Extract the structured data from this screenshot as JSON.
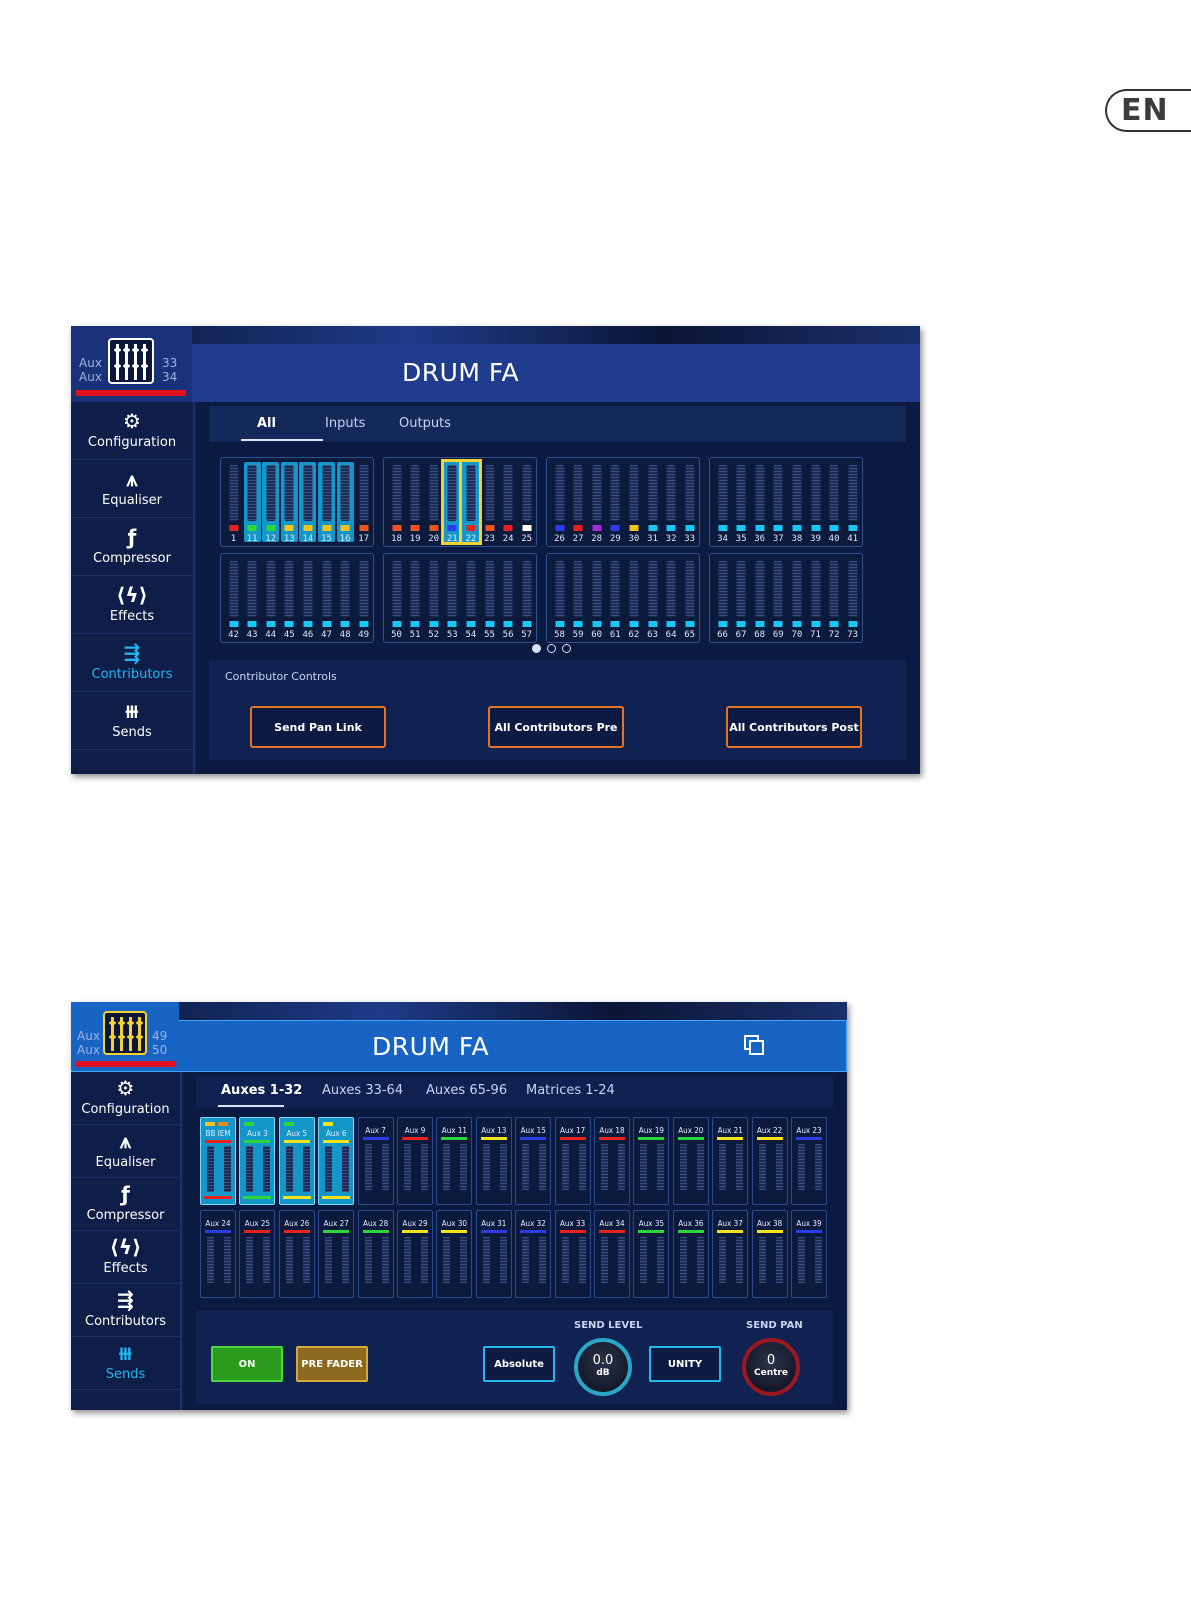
{
  "language_badge": "EN",
  "panel1": {
    "title": "DRUM FA",
    "aux_top": "Aux",
    "aux_bottom": "Aux",
    "aux_num_top": "33",
    "aux_num_bottom": "34",
    "sidebar": [
      {
        "label": "Configuration",
        "icon": "configuration-icon",
        "glyph": "⚙"
      },
      {
        "label": "Equaliser",
        "icon": "equaliser-icon",
        "glyph": "⩚"
      },
      {
        "label": "Compressor",
        "icon": "compressor-icon",
        "glyph": "ƒ"
      },
      {
        "label": "Effects",
        "icon": "effects-icon",
        "glyph": "⟨ϟ⟩"
      },
      {
        "label": "Contributors",
        "icon": "contributors-icon",
        "glyph": "⇶"
      },
      {
        "label": "Sends",
        "icon": "sends-icon",
        "glyph": "⧻"
      }
    ],
    "active_sidebar": "Contributors",
    "tabs": [
      "All",
      "Inputs",
      "Outputs"
    ],
    "active_tab": "All",
    "groups": [
      {
        "nums": [
          "1",
          "11",
          "12",
          "13",
          "14",
          "15",
          "16",
          "17"
        ],
        "dots": [
          "#e8231d",
          "#2cd73a",
          "#2cd73a",
          "#f5c21b",
          "#f5c21b",
          "#f5c21b",
          "#f5c21b",
          "#ec5420"
        ],
        "sel": [
          1,
          2,
          3,
          4,
          5,
          6
        ]
      },
      {
        "nums": [
          "18",
          "19",
          "20",
          "21",
          "22",
          "23",
          "24",
          "25"
        ],
        "dots": [
          "#ec5420",
          "#ec5420",
          "#ec5420",
          "#2b3ce8",
          "#e8231d",
          "#ec5420",
          "#e8231d",
          "#ffffff"
        ],
        "selY": [
          3,
          4
        ]
      },
      {
        "nums": [
          "26",
          "27",
          "28",
          "29",
          "30",
          "31",
          "32",
          "33"
        ],
        "dots": [
          "#2b3ce8",
          "#e8231d",
          "#a12fd8",
          "#2b3ce8",
          "#f5c21b",
          "#19c7f2",
          "#19c7f2",
          "#19c7f2"
        ]
      },
      {
        "nums": [
          "34",
          "35",
          "36",
          "37",
          "38",
          "39",
          "40",
          "41"
        ],
        "dots": [
          "#19c7f2",
          "#19c7f2",
          "#19c7f2",
          "#19c7f2",
          "#19c7f2",
          "#19c7f2",
          "#19c7f2",
          "#19c7f2"
        ]
      },
      {
        "nums": [
          "42",
          "43",
          "44",
          "45",
          "46",
          "47",
          "48",
          "49"
        ],
        "dots": [
          "#19c7f2",
          "#19c7f2",
          "#19c7f2",
          "#19c7f2",
          "#19c7f2",
          "#19c7f2",
          "#19c7f2",
          "#19c7f2"
        ]
      },
      {
        "nums": [
          "50",
          "51",
          "52",
          "53",
          "54",
          "55",
          "56",
          "57"
        ],
        "dots": [
          "#19c7f2",
          "#19c7f2",
          "#19c7f2",
          "#19c7f2",
          "#19c7f2",
          "#19c7f2",
          "#19c7f2",
          "#19c7f2"
        ]
      },
      {
        "nums": [
          "58",
          "59",
          "60",
          "61",
          "62",
          "63",
          "64",
          "65"
        ],
        "dots": [
          "#19c7f2",
          "#19c7f2",
          "#19c7f2",
          "#19c7f2",
          "#19c7f2",
          "#19c7f2",
          "#19c7f2",
          "#19c7f2"
        ]
      },
      {
        "nums": [
          "66",
          "67",
          "68",
          "69",
          "70",
          "71",
          "72",
          "73"
        ],
        "dots": [
          "#19c7f2",
          "#19c7f2",
          "#19c7f2",
          "#19c7f2",
          "#19c7f2",
          "#19c7f2",
          "#19c7f2",
          "#19c7f2"
        ]
      }
    ],
    "pager": {
      "pages": 3,
      "current": 1
    },
    "controls_label": "Contributor Controls",
    "buttons": [
      "Send Pan Link",
      "All Contributors Pre",
      "All Contributors Post"
    ]
  },
  "panel2": {
    "title": "DRUM FA",
    "aux_top": "Aux",
    "aux_bottom": "Aux",
    "aux_num_top": "49",
    "aux_num_bottom": "50",
    "window_icon": "popout-icon",
    "sidebar": [
      {
        "label": "Configuration",
        "icon": "configuration-icon",
        "glyph": "⚙"
      },
      {
        "label": "Equaliser",
        "icon": "equaliser-icon",
        "glyph": "⩚"
      },
      {
        "label": "Compressor",
        "icon": "compressor-icon",
        "glyph": "ƒ"
      },
      {
        "label": "Effects",
        "icon": "effects-icon",
        "glyph": "⟨ϟ⟩"
      },
      {
        "label": "Contributors",
        "icon": "contributors-icon",
        "glyph": "⇶"
      },
      {
        "label": "Sends",
        "icon": "sends-icon",
        "glyph": "⧻"
      }
    ],
    "active_sidebar": "Sends",
    "tabs": [
      "Auxes 1-32",
      "Auxes 33-64",
      "Auxes 65-96",
      "Matrices 1-24"
    ],
    "active_tab": "Auxes 1-32",
    "row1": [
      {
        "label": "BB IEM",
        "color": "#e8231d",
        "sel": true,
        "ind": [
          "#f5c21b",
          "#ec8a20"
        ],
        "bot": "#e8231d"
      },
      {
        "label": "Aux 3",
        "color": "#2cd73a",
        "sel": true,
        "ind": [
          "#2cd73a"
        ],
        "bot": "#2cd73a"
      },
      {
        "label": "Aux 5",
        "color": "#f5e21b",
        "sel": true,
        "ind": [
          "#2cd73a"
        ],
        "bot": "#f5e21b"
      },
      {
        "label": "Aux 6",
        "color": "#f5e21b",
        "sel": true,
        "ind": [
          "#f5e21b"
        ],
        "bot": "#f5e21b"
      },
      {
        "label": "Aux 7",
        "color": "#2b3ce8"
      },
      {
        "label": "Aux 9",
        "color": "#e8231d"
      },
      {
        "label": "Aux 11",
        "color": "#2cd73a"
      },
      {
        "label": "Aux 13",
        "color": "#f5e21b"
      },
      {
        "label": "Aux 15",
        "color": "#2b3ce8"
      },
      {
        "label": "Aux 17",
        "color": "#e8231d"
      },
      {
        "label": "Aux 18",
        "color": "#e8231d"
      },
      {
        "label": "Aux 19",
        "color": "#2cd73a"
      },
      {
        "label": "Aux 20",
        "color": "#2cd73a"
      },
      {
        "label": "Aux 21",
        "color": "#f5e21b"
      },
      {
        "label": "Aux 22",
        "color": "#f5e21b"
      },
      {
        "label": "Aux 23",
        "color": "#2b3ce8"
      }
    ],
    "row2": [
      {
        "label": "Aux 24",
        "color": "#2b3ce8"
      },
      {
        "label": "Aux 25",
        "color": "#e8231d"
      },
      {
        "label": "Aux 26",
        "color": "#e8231d"
      },
      {
        "label": "Aux 27",
        "color": "#2cd73a"
      },
      {
        "label": "Aux 28",
        "color": "#2cd73a"
      },
      {
        "label": "Aux 29",
        "color": "#f5e21b"
      },
      {
        "label": "Aux 30",
        "color": "#f5e21b"
      },
      {
        "label": "Aux 31",
        "color": "#2b3ce8"
      },
      {
        "label": "Aux 32",
        "color": "#2b3ce8"
      },
      {
        "label": "Aux 33",
        "color": "#e8231d"
      },
      {
        "label": "Aux 34",
        "color": "#e8231d"
      },
      {
        "label": "Aux 35",
        "color": "#2cd73a"
      },
      {
        "label": "Aux 36",
        "color": "#2cd73a"
      },
      {
        "label": "Aux 37",
        "color": "#f5e21b"
      },
      {
        "label": "Aux 38",
        "color": "#f5e21b"
      },
      {
        "label": "Aux 39",
        "color": "#2b3ce8"
      }
    ],
    "on_label": "ON",
    "prefader_label": "PRE FADER",
    "absolute_label": "Absolute",
    "unity_label": "UNITY",
    "send_level_label": "SEND LEVEL",
    "send_level_value": "0.0",
    "send_level_unit": "dB",
    "send_pan_label": "SEND PAN",
    "send_pan_value": "0",
    "send_pan_unit": "Centre"
  }
}
